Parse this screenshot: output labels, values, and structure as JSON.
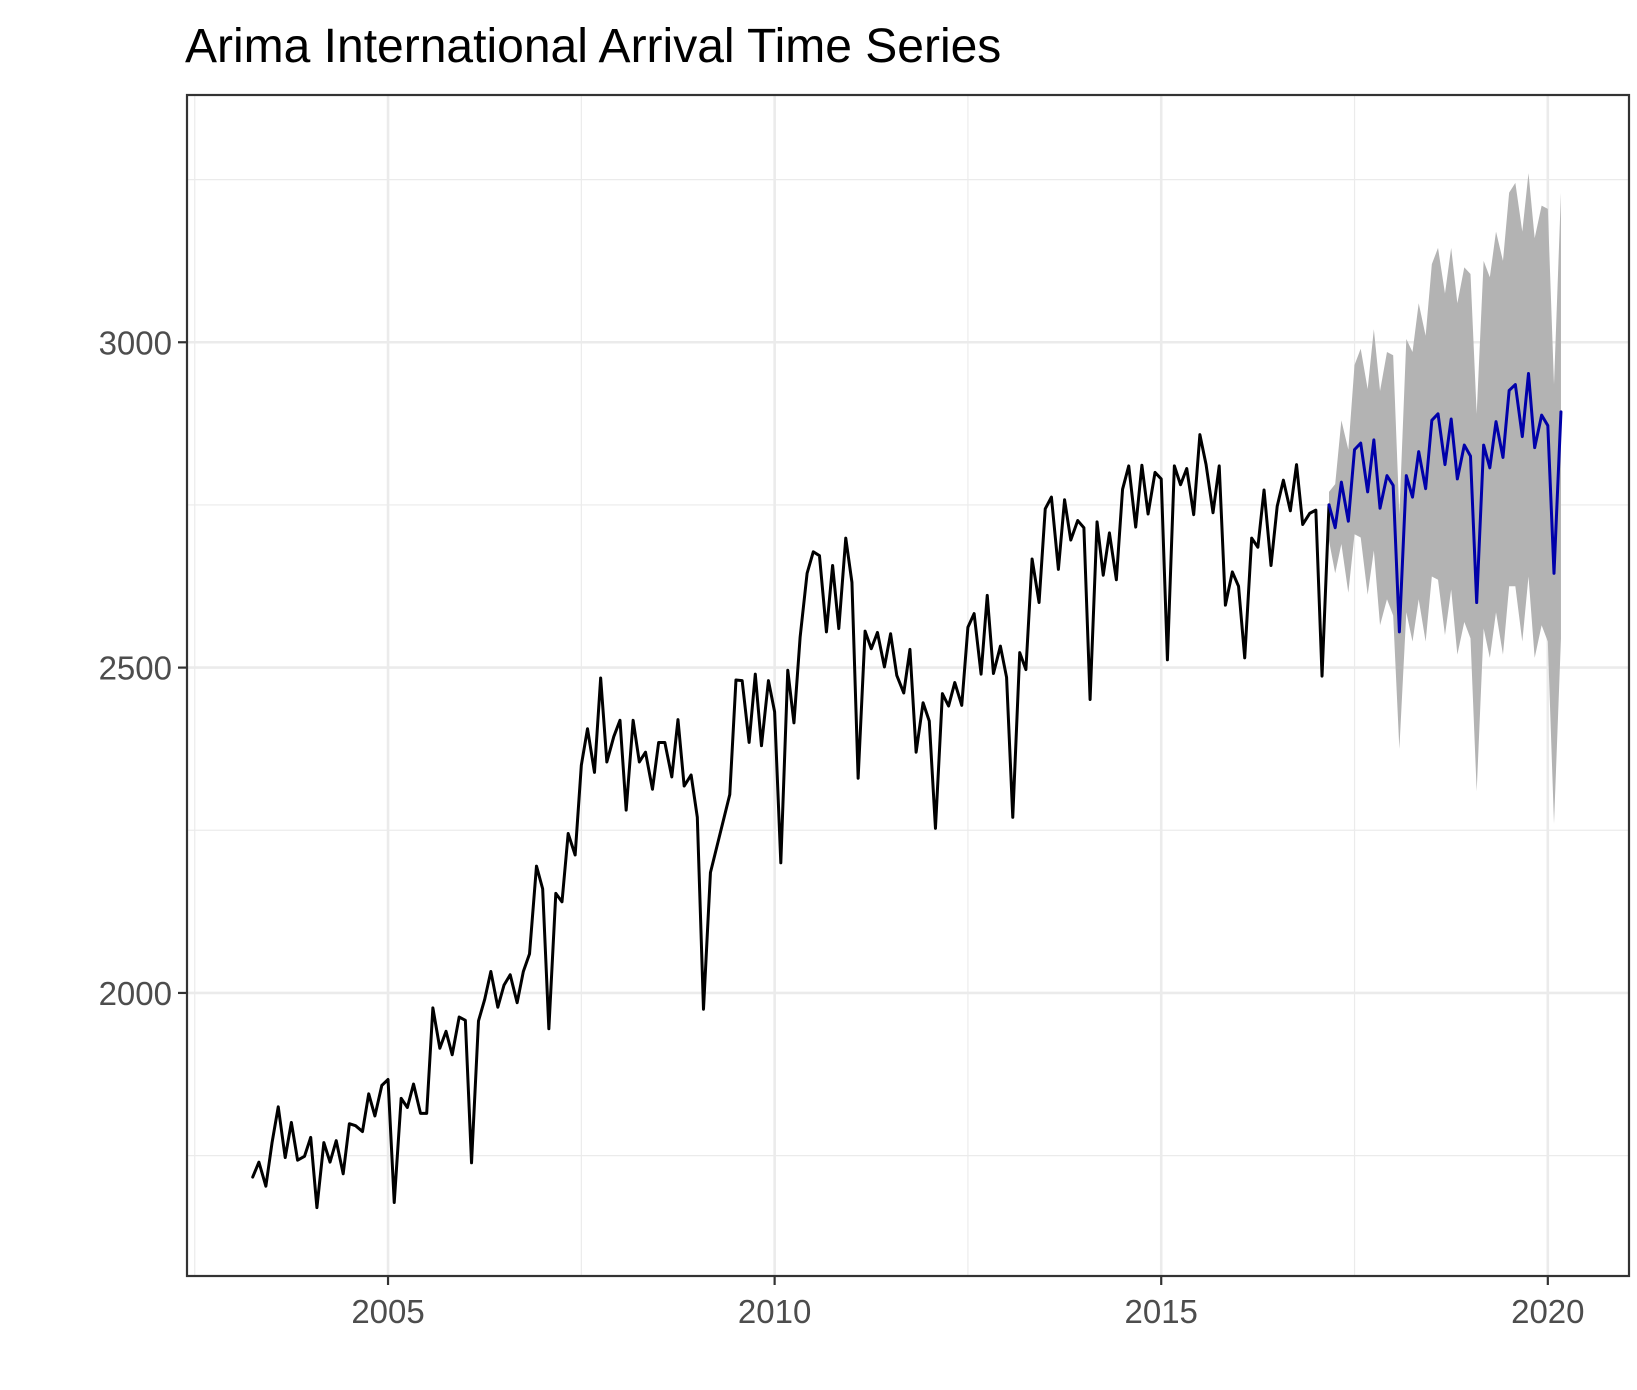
{
  "chart_data": {
    "type": "line",
    "title": "Arima International Arrival Time Series",
    "xlabel": "",
    "ylabel": "",
    "xlim": [
      2002.4,
      2021.05
    ],
    "ylim": [
      1565,
      3380
    ],
    "x_ticks": [
      {
        "value": 2005,
        "label": "2005"
      },
      {
        "value": 2010,
        "label": "2010"
      },
      {
        "value": 2015,
        "label": "2015"
      },
      {
        "value": 2020,
        "label": "2020"
      }
    ],
    "y_ticks": [
      {
        "value": 2000,
        "label": "2000"
      },
      {
        "value": 2500,
        "label": "2500"
      },
      {
        "value": 3000,
        "label": "3000"
      }
    ],
    "x_minor_ticks": [
      2002.5,
      2007.5,
      2012.5,
      2017.5
    ],
    "y_minor_ticks": [
      1750,
      2250,
      2750,
      3250
    ],
    "grid": true,
    "legend": "none",
    "colors": {
      "actual": "#000000",
      "forecast": "#0000aa",
      "interval": "#b3b3b3",
      "grid": "#ebebeb",
      "panel_border": "#333333",
      "tick_label": "#4d4d4d"
    },
    "series": [
      {
        "role": "actual",
        "x": [
          2003.25,
          2003.33,
          2003.42,
          2003.5,
          2003.58,
          2003.67,
          2003.75,
          2003.83,
          2003.92,
          2004.0,
          2004.08,
          2004.17,
          2004.25,
          2004.33,
          2004.42,
          2004.5,
          2004.58,
          2004.67,
          2004.75,
          2004.83,
          2004.92,
          2005.0,
          2005.08,
          2005.17,
          2005.25,
          2005.33,
          2005.42,
          2005.5,
          2005.58,
          2005.67,
          2005.75,
          2005.83,
          2005.92,
          2006.0,
          2006.08,
          2006.17,
          2006.25,
          2006.33,
          2006.42,
          2006.5,
          2006.58,
          2006.67,
          2006.75,
          2006.83,
          2006.92,
          2007.0,
          2007.08,
          2007.17,
          2007.25,
          2007.33,
          2007.42,
          2007.5,
          2007.58,
          2007.67,
          2007.75,
          2007.83,
          2007.92,
          2008.0,
          2008.08,
          2008.17,
          2008.25,
          2008.33,
          2008.42,
          2008.5,
          2008.58,
          2008.67,
          2008.75,
          2008.83,
          2008.92,
          2009.0,
          2009.08,
          2009.17,
          2009.42,
          2009.5,
          2009.58,
          2009.67,
          2009.75,
          2009.83,
          2009.92,
          2010.0,
          2010.08,
          2010.17,
          2010.25,
          2010.33,
          2010.42,
          2010.5,
          2010.58,
          2010.67,
          2010.75,
          2010.83,
          2010.92,
          2011.0,
          2011.08,
          2011.17,
          2011.25,
          2011.33,
          2011.42,
          2011.5,
          2011.58,
          2011.67,
          2011.75,
          2011.83,
          2011.92,
          2012.0,
          2012.08,
          2012.17,
          2012.25,
          2012.33,
          2012.42,
          2012.5,
          2012.58,
          2012.67,
          2012.75,
          2012.83,
          2012.92,
          2013.0,
          2013.08,
          2013.17,
          2013.25,
          2013.33,
          2013.42,
          2013.5,
          2013.58,
          2013.67,
          2013.75,
          2013.83,
          2013.92,
          2014.0,
          2014.08,
          2014.17,
          2014.25,
          2014.33,
          2014.42,
          2014.5,
          2014.58,
          2014.67,
          2014.75,
          2014.83,
          2014.92,
          2015.0,
          2015.08,
          2015.17,
          2015.25,
          2015.33,
          2015.42,
          2015.5,
          2015.58,
          2015.67,
          2015.75,
          2015.83,
          2015.92,
          2016.0,
          2016.08,
          2016.17,
          2016.25,
          2016.33,
          2016.42,
          2016.5,
          2016.58,
          2016.67,
          2016.75,
          2016.83,
          2016.92,
          2017.0,
          2017.08,
          2017.17
        ],
        "y": [
          1717,
          1740,
          1703,
          1770,
          1825,
          1747,
          1801,
          1743,
          1749,
          1778,
          1670,
          1770,
          1740,
          1773,
          1722,
          1799,
          1796,
          1787,
          1845,
          1811,
          1858,
          1867,
          1678,
          1838,
          1824,
          1860,
          1815,
          1815,
          1977,
          1915,
          1941,
          1905,
          1963,
          1958,
          1739,
          1957,
          1990,
          2033,
          1978,
          2012,
          2028,
          1985,
          2033,
          2060,
          2195,
          2160,
          1945,
          2153,
          2140,
          2245,
          2212,
          2350,
          2406,
          2339,
          2484,
          2355,
          2394,
          2419,
          2281,
          2419,
          2355,
          2370,
          2313,
          2385,
          2385,
          2332,
          2420,
          2318,
          2335,
          2270,
          1975,
          2185,
          2305,
          2481,
          2480,
          2385,
          2490,
          2380,
          2480,
          2432,
          2200,
          2496,
          2415,
          2547,
          2645,
          2678,
          2672,
          2555,
          2657,
          2560,
          2699,
          2631,
          2330,
          2556,
          2529,
          2554,
          2501,
          2552,
          2488,
          2461,
          2528,
          2370,
          2446,
          2418,
          2253,
          2460,
          2441,
          2477,
          2442,
          2562,
          2583,
          2490,
          2611,
          2491,
          2533,
          2485,
          2270,
          2523,
          2497,
          2667,
          2600,
          2744,
          2762,
          2651,
          2758,
          2696,
          2726,
          2715,
          2451,
          2724,
          2642,
          2707,
          2635,
          2774,
          2810,
          2716,
          2811,
          2736,
          2800,
          2790,
          2512,
          2810,
          2781,
          2806,
          2735,
          2858,
          2812,
          2738,
          2810,
          2596,
          2647,
          2625,
          2515,
          2699,
          2685,
          2773,
          2657,
          2748,
          2788,
          2741,
          2812,
          2720,
          2737,
          2742,
          2487,
          2750
        ]
      },
      {
        "role": "forecast",
        "x": [
          2017.17,
          2017.25,
          2017.33,
          2017.42,
          2017.5,
          2017.58,
          2017.67,
          2017.75,
          2017.83,
          2017.92,
          2018.0,
          2018.08,
          2018.17,
          2018.25,
          2018.33,
          2018.42,
          2018.5,
          2018.58,
          2018.67,
          2018.75,
          2018.83,
          2018.92,
          2019.0,
          2019.08,
          2019.17,
          2019.25,
          2019.33,
          2019.42,
          2019.5,
          2019.58,
          2019.67,
          2019.75,
          2019.83,
          2019.92,
          2020.0,
          2020.08,
          2020.17
        ],
        "y": [
          2750,
          2715,
          2785,
          2725,
          2835,
          2845,
          2770,
          2850,
          2745,
          2795,
          2780,
          2555,
          2795,
          2762,
          2832,
          2775,
          2880,
          2890,
          2812,
          2882,
          2790,
          2842,
          2825,
          2600,
          2842,
          2807,
          2878,
          2823,
          2926,
          2935,
          2855,
          2952,
          2838,
          2888,
          2872,
          2645,
          2893
        ]
      }
    ],
    "interval": {
      "x": [
        2017.17,
        2017.25,
        2017.33,
        2017.42,
        2017.5,
        2017.58,
        2017.67,
        2017.75,
        2017.83,
        2017.92,
        2018.0,
        2018.08,
        2018.17,
        2018.25,
        2018.33,
        2018.42,
        2018.5,
        2018.58,
        2018.67,
        2018.75,
        2018.83,
        2018.92,
        2019.0,
        2019.08,
        2019.17,
        2019.25,
        2019.33,
        2019.42,
        2019.5,
        2019.58,
        2019.67,
        2019.75,
        2019.83,
        2019.92,
        2020.0,
        2020.08,
        2020.17
      ],
      "lower": [
        2695,
        2645,
        2690,
        2615,
        2705,
        2700,
        2612,
        2680,
        2565,
        2605,
        2580,
        2375,
        2585,
        2540,
        2605,
        2540,
        2640,
        2635,
        2550,
        2620,
        2520,
        2570,
        2545,
        2310,
        2560,
        2515,
        2585,
        2520,
        2625,
        2625,
        2540,
        2640,
        2515,
        2565,
        2540,
        2260,
        2545
      ],
      "upper": [
        2770,
        2782,
        2880,
        2835,
        2965,
        2990,
        2928,
        3020,
        2925,
        2985,
        2980,
        2735,
        3005,
        2985,
        3060,
        3010,
        3120,
        3145,
        3075,
        3145,
        3060,
        3115,
        3105,
        2890,
        3125,
        3100,
        3170,
        3125,
        3230,
        3245,
        3170,
        3260,
        3160,
        3210,
        3205,
        2935,
        3230
      ]
    }
  }
}
